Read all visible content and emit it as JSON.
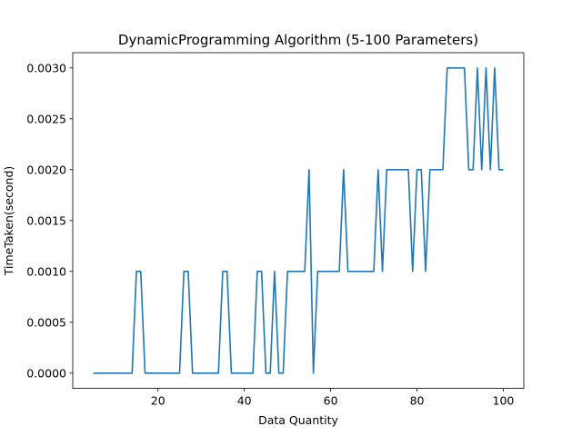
{
  "chart_data": {
    "type": "line",
    "title": "DynamicProgramming Algorithm (5-100 Parameters)",
    "xlabel": "Data Quantity",
    "ylabel": "TimeTaken(second)",
    "xlim": [
      0.25,
      104.75
    ],
    "ylim": [
      -0.00015,
      0.00315
    ],
    "xticks": [
      20,
      40,
      60,
      80,
      100
    ],
    "yticks": [
      0.0,
      0.0005,
      0.001,
      0.0015,
      0.002,
      0.0025,
      0.003
    ],
    "xtick_labels": [
      "20",
      "40",
      "60",
      "80",
      "100"
    ],
    "ytick_labels": [
      "0.0000",
      "0.0005",
      "0.0010",
      "0.0015",
      "0.0020",
      "0.0025",
      "0.0030"
    ],
    "grid": false,
    "line_color": "#1f77b4",
    "series": [
      {
        "x": [
          5,
          6,
          7,
          8,
          9,
          10,
          11,
          12,
          13,
          14,
          15,
          16,
          17,
          18,
          19,
          20,
          21,
          22,
          23,
          24,
          25,
          26,
          27,
          28,
          29,
          30,
          31,
          32,
          33,
          34,
          35,
          36,
          37,
          38,
          39,
          40,
          41,
          42,
          43,
          44,
          45,
          46,
          47,
          48,
          49,
          50,
          51,
          52,
          53,
          54,
          55,
          56,
          57,
          58,
          59,
          60,
          61,
          62,
          63,
          64,
          65,
          66,
          67,
          68,
          69,
          70,
          71,
          72,
          73,
          74,
          75,
          76,
          77,
          78,
          79,
          80,
          81,
          82,
          83,
          84,
          85,
          86,
          87,
          88,
          89,
          90,
          91,
          92,
          93,
          94,
          95,
          96,
          97,
          98,
          99,
          100
        ],
        "values": [
          0,
          0,
          0,
          0,
          0,
          0,
          0,
          0,
          0,
          0,
          0.001,
          0.001,
          0,
          0,
          0,
          0,
          0,
          0,
          0,
          0,
          0,
          0.001,
          0.001,
          0,
          0,
          0,
          0,
          0,
          0,
          0,
          0.001,
          0.001,
          0,
          0,
          0,
          0,
          0,
          0,
          0.001,
          0.001,
          0,
          0,
          0.001,
          0,
          0,
          0.001,
          0.001,
          0.001,
          0.001,
          0.001,
          0.002,
          0,
          0.001,
          0.001,
          0.001,
          0.001,
          0.001,
          0.001,
          0.002,
          0.001,
          0.001,
          0.001,
          0.001,
          0.001,
          0.001,
          0.001,
          0.002,
          0.001,
          0.002,
          0.002,
          0.002,
          0.002,
          0.002,
          0.002,
          0.001,
          0.002,
          0.002,
          0.001,
          0.002,
          0.002,
          0.002,
          0.002,
          0.003,
          0.003,
          0.003,
          0.003,
          0.003,
          0.002,
          0.002,
          0.003,
          0.002,
          0.003,
          0.002,
          0.003,
          0.002,
          0.002
        ]
      }
    ]
  }
}
